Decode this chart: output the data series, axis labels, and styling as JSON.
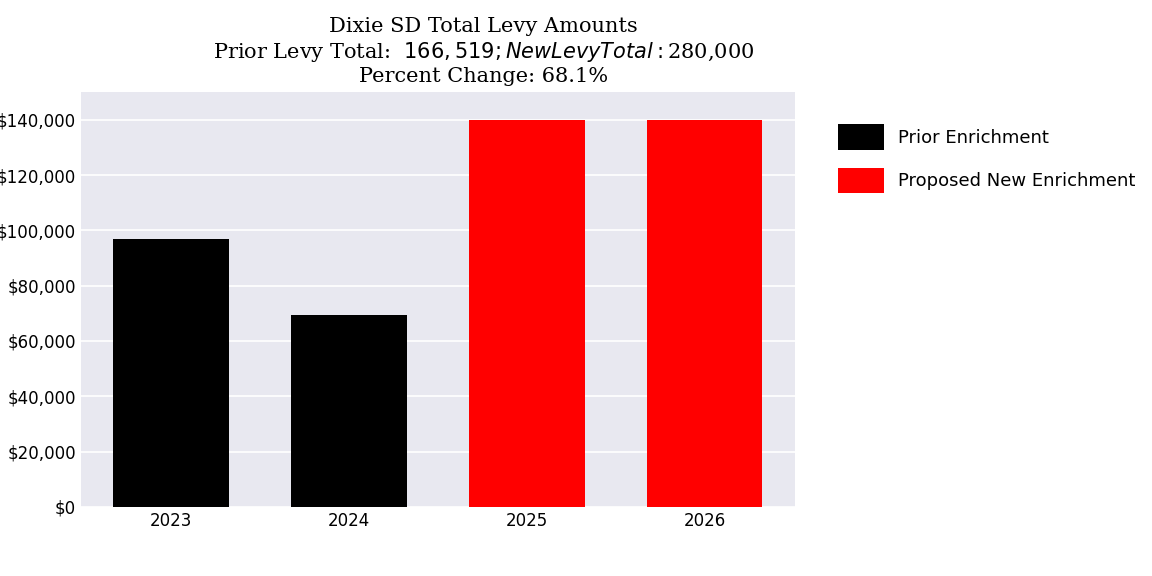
{
  "title_line1": "Dixie SD Total Levy Amounts",
  "title_line2": "Prior Levy Total:  $166,519; New Levy Total: $280,000",
  "title_line3": "Percent Change: 68.1%",
  "categories": [
    "2023",
    "2024",
    "2025",
    "2026"
  ],
  "values": [
    97000,
    69519,
    140000,
    140000
  ],
  "bar_colors": [
    "#000000",
    "#000000",
    "#ff0000",
    "#ff0000"
  ],
  "legend_labels": [
    "Prior Enrichment",
    "Proposed New Enrichment"
  ],
  "legend_colors": [
    "#000000",
    "#ff0000"
  ],
  "ylim": [
    0,
    150000
  ],
  "ytick_step": 20000,
  "background_color": "#e8e8f0",
  "figure_background": "#ffffff",
  "title_fontsize": 15,
  "tick_fontsize": 12,
  "legend_fontsize": 13,
  "bar_width": 0.65
}
